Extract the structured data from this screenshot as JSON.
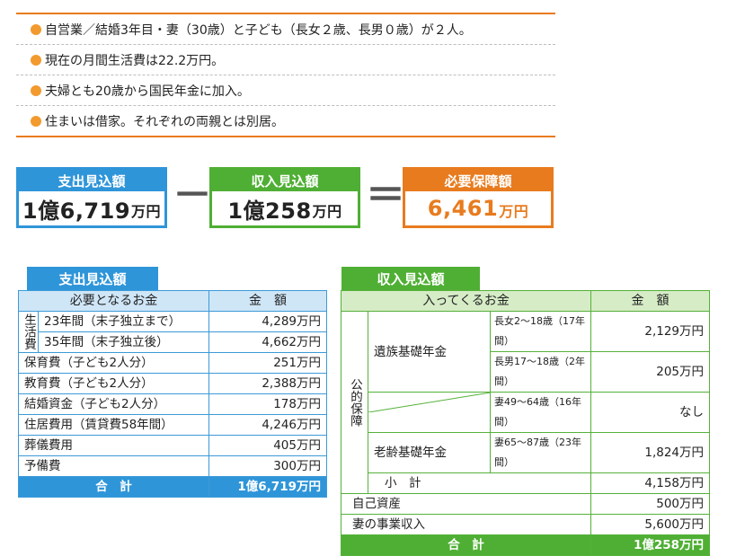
{
  "bullets": [
    "自営業／結婚3年目・妻（30歳）と子ども（長女２歳、長男０歳）が２人。",
    "現在の月間生活費は22.2万円。",
    "夫婦とも20歳から国民年金に加入。",
    "住まいは借家。それぞれの両親とは別居。"
  ],
  "summary": {
    "expense": {
      "title": "支出見込額",
      "value": "1億6,719",
      "unit": "万円"
    },
    "income": {
      "title": "収入見込額",
      "value": "1億258",
      "unit": "万円"
    },
    "required": {
      "title": "必要保障額",
      "value": "6,461",
      "unit": "万円"
    },
    "minus": "－",
    "equals": "＝"
  },
  "expense_table": {
    "tab": "支出見込額",
    "col_item": "必要となるお金",
    "col_amount": "金　額",
    "living_label": "生活費",
    "living_rows": [
      {
        "label": "23年間（末子独立まで）",
        "amount": "4,289万円"
      },
      {
        "label": "35年間（末子独立後）",
        "amount": "4,662万円"
      }
    ],
    "rows": [
      {
        "label": "保育費（子ども2人分）",
        "amount": "251万円"
      },
      {
        "label": "教育費（子ども2人分）",
        "amount": "2,388万円"
      },
      {
        "label": "結婚資金（子ども2人分）",
        "amount": "178万円"
      },
      {
        "label": "住居費用（賃貸費58年間）",
        "amount": "4,246万円"
      },
      {
        "label": "葬儀費用",
        "amount": "405万円"
      },
      {
        "label": "予備費",
        "amount": "300万円"
      }
    ],
    "total_label": "合　計",
    "total_amount": "1億6,719万円"
  },
  "income_table": {
    "tab": "収入見込額",
    "col_item": "入ってくるお金",
    "col_amount": "金　額",
    "public_label": "公的保障",
    "survivor_label": "遺族基礎年金",
    "survivor_rows": [
      {
        "period": "長女2～18歳（17年間）",
        "amount": "2,129万円"
      },
      {
        "period": "長男17～18歳（2年間）",
        "amount": "205万円"
      },
      {
        "period": "妻49～64歳（16年間）",
        "amount": "なし"
      }
    ],
    "old_age_label": "老齢基礎年金",
    "old_age_period": "妻65～87歳（23年間）",
    "old_age_amount": "1,824万円",
    "subtotal_label": "小　計",
    "subtotal_amount": "4,158万円",
    "rows": [
      {
        "label": "自己資産",
        "amount": "500万円"
      },
      {
        "label": "妻の事業収入",
        "amount": "5,600万円"
      }
    ],
    "total_label": "合　計",
    "total_amount": "1億258万円"
  },
  "colors": {
    "orange": "#e87b1e",
    "blue": "#2f95d9",
    "green": "#4faf34"
  }
}
